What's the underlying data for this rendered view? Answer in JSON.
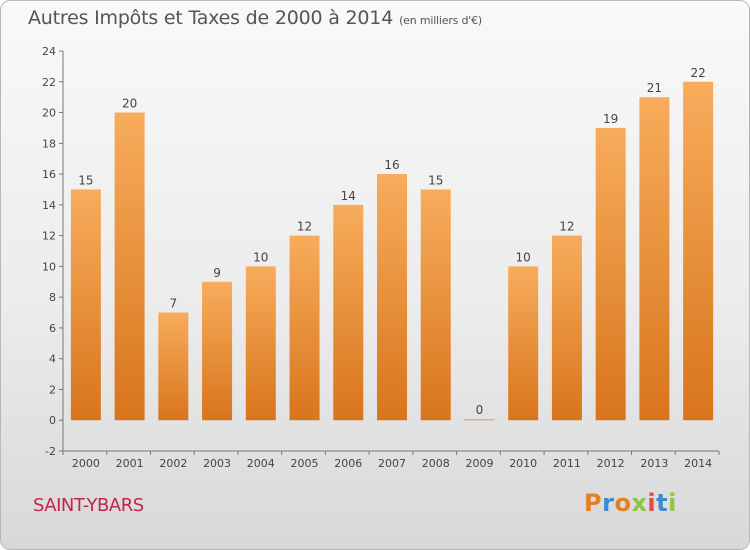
{
  "header": {
    "title": "Autres Impôts et Taxes de 2000 à 2014",
    "unit": "(en milliers d'€)"
  },
  "footer": {
    "place": "SAINT-YBARS",
    "logo": "Proxiti"
  },
  "colors": {
    "bar_light": "#f7ac5c",
    "bar_dark": "#d8751c",
    "place": "#c2244a",
    "logo_letters": [
      "#e67e22",
      "#3b8bd3",
      "#e67e22",
      "#8dc63f",
      "#e64a4a",
      "#3b8bd3",
      "#8dc63f"
    ]
  },
  "chart_data": {
    "type": "bar",
    "title": "Autres Impôts et Taxes de 2000 à 2014",
    "subtitle": "(en milliers d'€)",
    "xlabel": "",
    "ylabel": "",
    "categories": [
      "2000",
      "2001",
      "2002",
      "2003",
      "2004",
      "2005",
      "2006",
      "2007",
      "2008",
      "2009",
      "2010",
      "2011",
      "2012",
      "2013",
      "2014"
    ],
    "values": [
      15,
      20,
      7,
      9,
      10,
      12,
      14,
      16,
      15,
      0,
      10,
      12,
      19,
      21,
      22
    ],
    "ylim": [
      -2,
      24
    ],
    "yticks": [
      -2,
      0,
      2,
      4,
      6,
      8,
      10,
      12,
      14,
      16,
      18,
      20,
      22,
      24
    ],
    "grid": false,
    "legend": "none"
  }
}
